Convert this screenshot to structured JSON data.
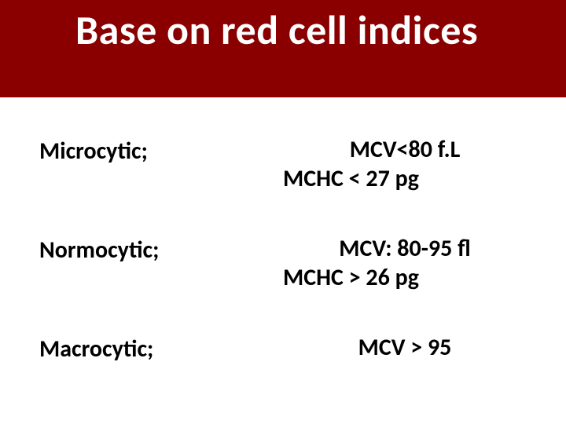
{
  "header": {
    "title": "Base on red cell indices",
    "background_color": "#8a0000",
    "text_color": "#ffffff",
    "title_fontsize": 52,
    "title_fontweight": 700
  },
  "body": {
    "background_color": "#ffffff",
    "text_color": "#000000",
    "label_fontsize": 30,
    "value_fontsize": 30,
    "fontweight": 600
  },
  "rows": [
    {
      "label": "Microcytic;",
      "line1": "MCV<80 f.L",
      "line2": "MCHC < 27 pg"
    },
    {
      "label": "Normocytic;",
      "line1": "MCV: 80-95 fl",
      "line2": "MCHC > 26 pg"
    },
    {
      "label": "Macrocytic;",
      "line1": "MCV > 95",
      "line2": ""
    }
  ]
}
